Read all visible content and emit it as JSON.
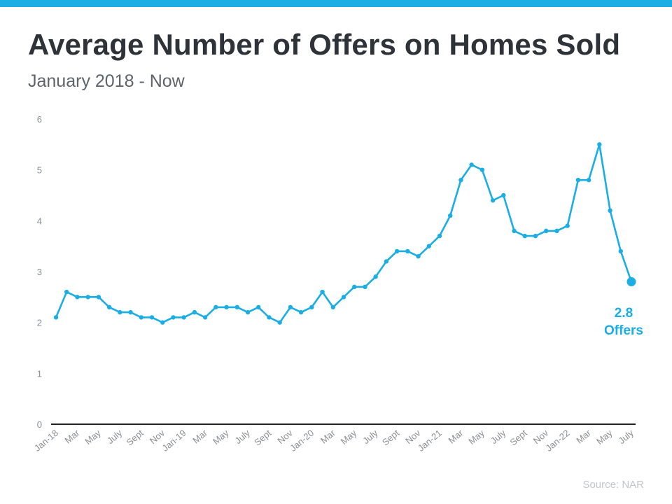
{
  "header": {
    "title": "Average Number of Offers on Homes Sold",
    "subtitle": "January 2018 - Now"
  },
  "callout": {
    "value": "2.8",
    "label": "Offers"
  },
  "source": "Source: NAR",
  "colors": {
    "accent": "#1aaee5",
    "title": "#2d3338",
    "axis": "#222222",
    "tick": "#8a9096"
  },
  "chart_data": {
    "type": "line",
    "title": "Average Number of Offers on Homes Sold",
    "subtitle": "January 2018 - Now",
    "xlabel": "",
    "ylabel": "",
    "ylim": [
      0,
      6
    ],
    "yticks": [
      0,
      1,
      2,
      3,
      4,
      5,
      6
    ],
    "grid": false,
    "x_tick_labels": [
      "Jan-18",
      "Mar",
      "May",
      "July",
      "Sept",
      "Nov",
      "Jan-19",
      "Mar",
      "May",
      "July",
      "Sept",
      "Nov",
      "Jan-20",
      "Mar",
      "May",
      "July",
      "Sept",
      "Nov",
      "Jan-21",
      "Mar",
      "May",
      "July",
      "Sept",
      "Nov",
      "Jan-22",
      "Mar",
      "May",
      "July"
    ],
    "x_start": "2018-01",
    "series": [
      {
        "name": "Average number of offers",
        "color": "#1aaee5",
        "values": [
          2.1,
          2.6,
          2.5,
          2.5,
          2.5,
          2.3,
          2.2,
          2.2,
          2.1,
          2.1,
          2.0,
          2.1,
          2.1,
          2.2,
          2.1,
          2.3,
          2.3,
          2.3,
          2.2,
          2.3,
          2.1,
          2.0,
          2.3,
          2.2,
          2.3,
          2.6,
          2.3,
          2.5,
          2.7,
          2.7,
          2.9,
          3.2,
          3.4,
          3.4,
          3.3,
          3.5,
          3.7,
          4.1,
          4.8,
          5.1,
          5.0,
          4.4,
          4.5,
          3.8,
          3.7,
          3.7,
          3.8,
          3.8,
          3.9,
          4.8,
          4.8,
          5.5,
          4.2,
          3.4,
          2.8
        ]
      }
    ]
  }
}
